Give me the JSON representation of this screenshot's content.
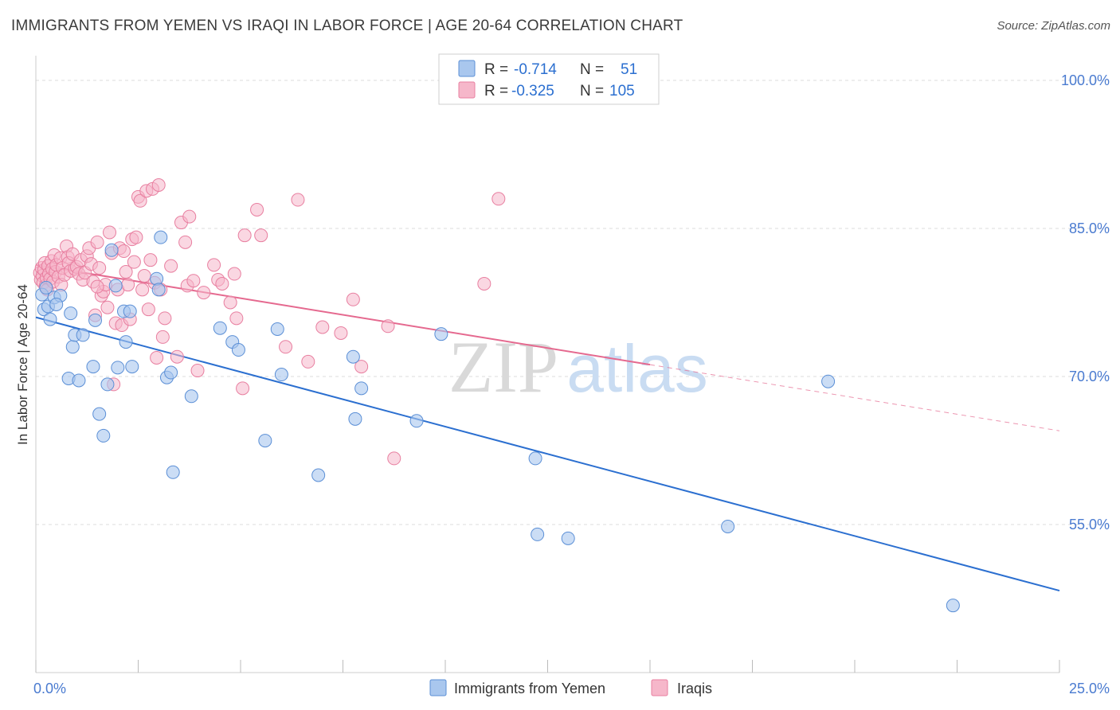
{
  "header": {
    "title": "IMMIGRANTS FROM YEMEN VS IRAQI IN LABOR FORCE | AGE 20-64 CORRELATION CHART",
    "source": "Source: ZipAtlas.com"
  },
  "watermark": {
    "part1": "ZIP",
    "part2": "atlas"
  },
  "colors": {
    "yemen_fill": "#a9c7ee",
    "yemen_stroke": "#5b8fd6",
    "yemen_line": "#2b6fd0",
    "iraqi_fill": "#f6b7ca",
    "iraqi_stroke": "#e87fa0",
    "iraqi_line": "#e5698f",
    "tick_label": "#4a7bd0",
    "grid": "#dddddd"
  },
  "chart_data": {
    "type": "scatter",
    "title": "IMMIGRANTS FROM YEMEN VS IRAQI IN LABOR FORCE | AGE 20-64 CORRELATION CHART",
    "xlabel": "",
    "ylabel": "In Labor Force | Age 20-64",
    "xlim": [
      0,
      25
    ],
    "ylim": [
      40,
      102.5
    ],
    "x_tick_labels": [
      {
        "value": 0,
        "label": "0.0%"
      },
      {
        "value": 25,
        "label": "25.0%"
      }
    ],
    "y_tick_labels": [
      {
        "value": 100,
        "label": "100.0%"
      },
      {
        "value": 85,
        "label": "85.0%"
      },
      {
        "value": 70,
        "label": "70.0%"
      },
      {
        "value": 55,
        "label": "55.0%"
      }
    ],
    "legend": {
      "placement": "top-center",
      "rows": [
        {
          "r_label": "R =",
          "r_value": "-0.714",
          "n_label": "N =",
          "n_value": "51"
        },
        {
          "r_label": "R =",
          "r_value": "-0.325",
          "n_label": "N =",
          "n_value": "105"
        }
      ]
    },
    "bottom_legend": [
      "Immigrants from Yemen",
      "Iraqis"
    ],
    "series": [
      {
        "name": "Immigrants from Yemen",
        "r": -0.714,
        "n": 51,
        "trend": {
          "x0": 0.0,
          "y0": 76.0,
          "x1": 25.0,
          "y1": 48.3
        },
        "points": [
          [
            0.15,
            78.3
          ],
          [
            0.2,
            76.8
          ],
          [
            0.3,
            77.1
          ],
          [
            0.35,
            75.8
          ],
          [
            0.45,
            78.0
          ],
          [
            0.6,
            78.2
          ],
          [
            0.8,
            69.8
          ],
          [
            0.85,
            76.4
          ],
          [
            0.9,
            73.0
          ],
          [
            0.95,
            74.2
          ],
          [
            1.05,
            69.6
          ],
          [
            1.15,
            74.2
          ],
          [
            1.4,
            71.0
          ],
          [
            1.45,
            75.7
          ],
          [
            1.55,
            66.2
          ],
          [
            1.65,
            64.0
          ],
          [
            1.75,
            69.2
          ],
          [
            1.85,
            82.8
          ],
          [
            1.95,
            79.2
          ],
          [
            2.0,
            70.9
          ],
          [
            2.15,
            76.6
          ],
          [
            2.2,
            73.5
          ],
          [
            2.3,
            76.6
          ],
          [
            2.35,
            71.0
          ],
          [
            2.95,
            79.9
          ],
          [
            3.0,
            78.8
          ],
          [
            3.05,
            84.1
          ],
          [
            3.2,
            69.9
          ],
          [
            3.3,
            70.4
          ],
          [
            3.35,
            60.3
          ],
          [
            3.8,
            68.0
          ],
          [
            4.5,
            74.9
          ],
          [
            4.8,
            73.5
          ],
          [
            4.95,
            72.7
          ],
          [
            5.6,
            63.5
          ],
          [
            5.9,
            74.8
          ],
          [
            6.0,
            70.2
          ],
          [
            6.9,
            60.0
          ],
          [
            7.75,
            72.0
          ],
          [
            7.8,
            65.7
          ],
          [
            7.95,
            68.8
          ],
          [
            9.3,
            65.5
          ],
          [
            9.9,
            74.3
          ],
          [
            12.2,
            61.7
          ],
          [
            12.25,
            54.0
          ],
          [
            13.0,
            53.6
          ],
          [
            16.9,
            54.8
          ],
          [
            19.35,
            69.5
          ],
          [
            22.4,
            46.8
          ],
          [
            0.25,
            79.0
          ],
          [
            0.5,
            77.3
          ]
        ]
      },
      {
        "name": "Iraqis",
        "r": -0.325,
        "n": 105,
        "trend": {
          "x0": 0.0,
          "y0": 81.3,
          "x1": 15.0,
          "y1": 71.2,
          "dash_x1": 25.0,
          "dash_y1": 64.5
        },
        "points": [
          [
            0.1,
            80.5
          ],
          [
            0.12,
            79.8
          ],
          [
            0.14,
            81.0
          ],
          [
            0.16,
            80.2
          ],
          [
            0.18,
            79.5
          ],
          [
            0.2,
            80.8
          ],
          [
            0.22,
            81.5
          ],
          [
            0.24,
            79.2
          ],
          [
            0.26,
            80.0
          ],
          [
            0.28,
            78.8
          ],
          [
            0.3,
            81.2
          ],
          [
            0.32,
            80.4
          ],
          [
            0.35,
            79.9
          ],
          [
            0.38,
            81.7
          ],
          [
            0.4,
            80.9
          ],
          [
            0.42,
            79.6
          ],
          [
            0.45,
            82.3
          ],
          [
            0.48,
            80.6
          ],
          [
            0.5,
            81.3
          ],
          [
            0.55,
            80.1
          ],
          [
            0.6,
            82.0
          ],
          [
            0.62,
            79.3
          ],
          [
            0.65,
            81.0
          ],
          [
            0.7,
            80.3
          ],
          [
            0.75,
            83.2
          ],
          [
            0.78,
            82.1
          ],
          [
            0.8,
            81.5
          ],
          [
            0.85,
            80.7
          ],
          [
            0.9,
            82.4
          ],
          [
            0.95,
            80.9
          ],
          [
            1.0,
            81.1
          ],
          [
            1.05,
            80.4
          ],
          [
            1.1,
            81.8
          ],
          [
            1.15,
            79.8
          ],
          [
            1.2,
            80.5
          ],
          [
            1.25,
            82.2
          ],
          [
            1.3,
            83.0
          ],
          [
            1.35,
            81.4
          ],
          [
            1.4,
            79.6
          ],
          [
            1.45,
            76.2
          ],
          [
            1.5,
            83.6
          ],
          [
            1.55,
            81.0
          ],
          [
            1.6,
            78.2
          ],
          [
            1.65,
            78.6
          ],
          [
            1.7,
            79.3
          ],
          [
            1.75,
            77.0
          ],
          [
            1.8,
            84.6
          ],
          [
            1.85,
            82.5
          ],
          [
            1.9,
            69.2
          ],
          [
            1.95,
            75.4
          ],
          [
            2.0,
            78.8
          ],
          [
            2.05,
            83.0
          ],
          [
            2.1,
            75.2
          ],
          [
            2.15,
            82.7
          ],
          [
            2.2,
            80.6
          ],
          [
            2.25,
            79.3
          ],
          [
            2.3,
            75.8
          ],
          [
            2.35,
            83.9
          ],
          [
            2.4,
            81.6
          ],
          [
            2.45,
            84.1
          ],
          [
            2.5,
            88.2
          ],
          [
            2.55,
            87.8
          ],
          [
            2.6,
            78.8
          ],
          [
            2.65,
            80.2
          ],
          [
            2.7,
            88.8
          ],
          [
            2.75,
            76.8
          ],
          [
            2.8,
            81.8
          ],
          [
            2.85,
            89.0
          ],
          [
            2.9,
            79.5
          ],
          [
            2.95,
            71.9
          ],
          [
            3.0,
            89.4
          ],
          [
            3.05,
            78.8
          ],
          [
            3.1,
            74.0
          ],
          [
            3.15,
            75.9
          ],
          [
            3.3,
            81.2
          ],
          [
            3.45,
            72.0
          ],
          [
            3.55,
            85.6
          ],
          [
            3.65,
            83.6
          ],
          [
            3.7,
            79.2
          ],
          [
            3.75,
            86.2
          ],
          [
            3.85,
            79.7
          ],
          [
            3.95,
            70.6
          ],
          [
            4.1,
            78.5
          ],
          [
            4.35,
            81.3
          ],
          [
            4.45,
            79.8
          ],
          [
            4.55,
            79.4
          ],
          [
            4.75,
            77.5
          ],
          [
            4.85,
            80.4
          ],
          [
            4.9,
            75.9
          ],
          [
            5.05,
            68.8
          ],
          [
            5.1,
            84.3
          ],
          [
            5.4,
            86.9
          ],
          [
            5.5,
            84.3
          ],
          [
            6.1,
            73.0
          ],
          [
            6.4,
            87.9
          ],
          [
            6.65,
            71.5
          ],
          [
            7.0,
            75.0
          ],
          [
            7.45,
            74.4
          ],
          [
            7.75,
            77.8
          ],
          [
            7.95,
            71.0
          ],
          [
            8.6,
            75.1
          ],
          [
            8.75,
            61.7
          ],
          [
            10.95,
            79.4
          ],
          [
            11.3,
            88.0
          ],
          [
            1.5,
            79.1
          ]
        ]
      }
    ]
  }
}
